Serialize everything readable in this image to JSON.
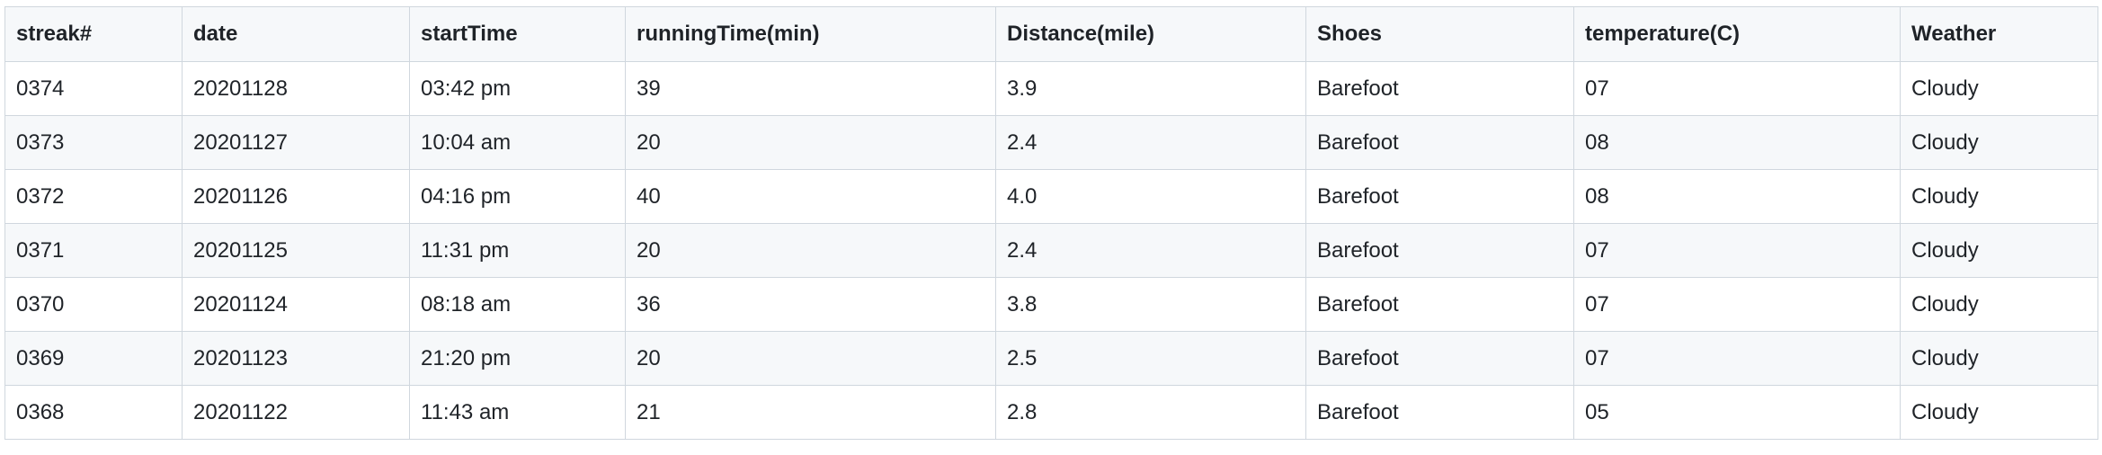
{
  "table": {
    "columns": [
      "streak#",
      "date",
      "startTime",
      "runningTime(min)",
      "Distance(mile)",
      "Shoes",
      "temperature(C)",
      "Weather"
    ],
    "rows": [
      [
        "0374",
        "20201128",
        "03:42 pm",
        "39",
        "3.9",
        "Barefoot",
        "07",
        "Cloudy"
      ],
      [
        "0373",
        "20201127",
        "10:04 am",
        "20",
        "2.4",
        "Barefoot",
        "08",
        "Cloudy"
      ],
      [
        "0372",
        "20201126",
        "04:16 pm",
        "40",
        "4.0",
        "Barefoot",
        "08",
        "Cloudy"
      ],
      [
        "0371",
        "20201125",
        "11:31 pm",
        "20",
        "2.4",
        "Barefoot",
        "07",
        "Cloudy"
      ],
      [
        "0370",
        "20201124",
        "08:18 am",
        "36",
        "3.8",
        "Barefoot",
        "07",
        "Cloudy"
      ],
      [
        "0369",
        "20201123",
        "21:20 pm",
        "20",
        "2.5",
        "Barefoot",
        "07",
        "Cloudy"
      ],
      [
        "0368",
        "20201122",
        "11:43 am",
        "21",
        "2.8",
        "Barefoot",
        "05",
        "Cloudy"
      ]
    ]
  }
}
